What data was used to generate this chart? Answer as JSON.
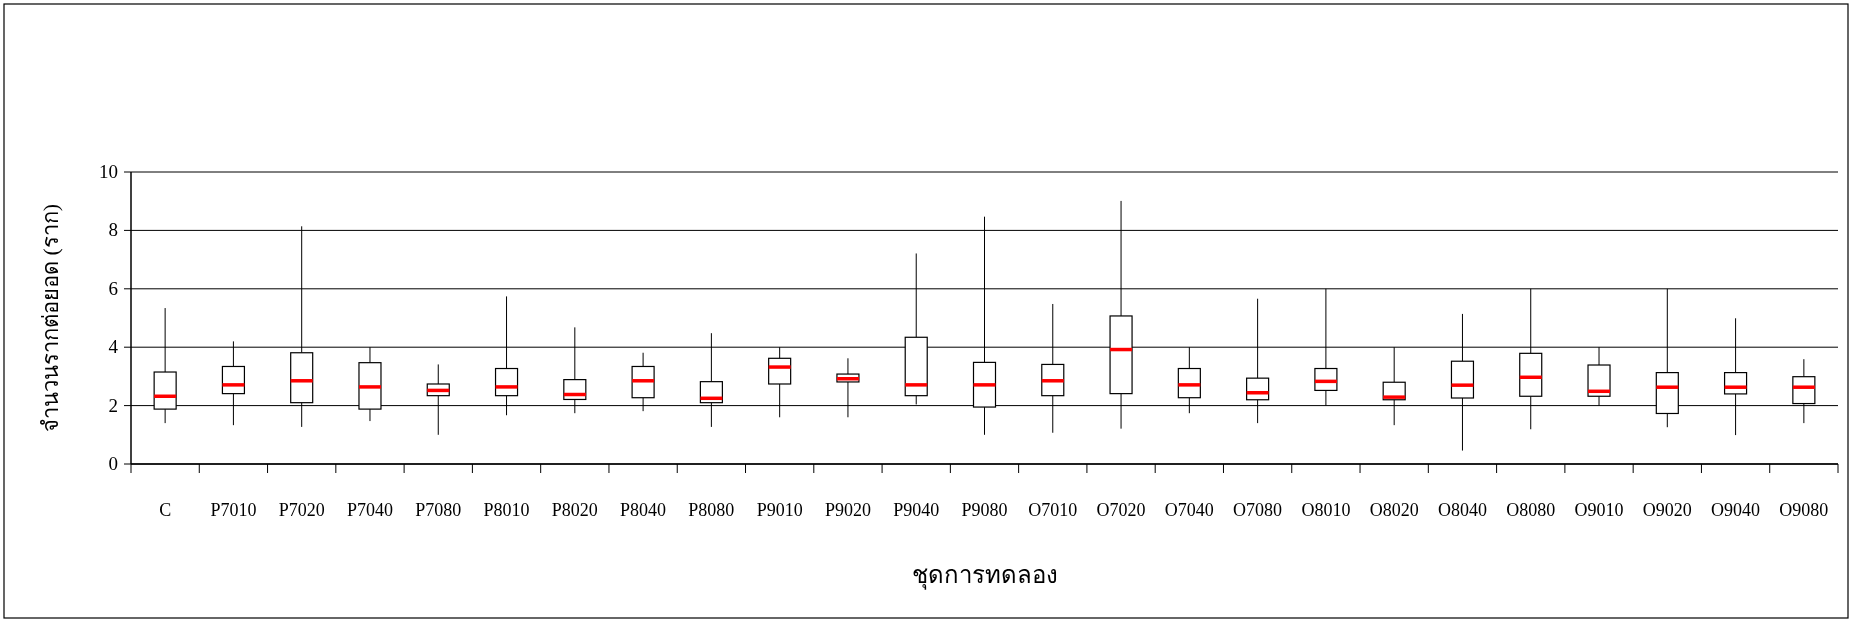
{
  "chart_data": {
    "type": "box",
    "xlabel": "ชุดการทดลอง",
    "ylabel": "จำนวนรากต่อยอด (ราก)",
    "categories": [
      "C",
      "P7010",
      "P7020",
      "P7040",
      "P7080",
      "P8010",
      "P8020",
      "P8040",
      "P8080",
      "P9010",
      "P9020",
      "P9040",
      "P9080",
      "O7010",
      "O7020",
      "O7040",
      "O7080",
      "O8010",
      "O8020",
      "O8040",
      "O8080",
      "O9010",
      "O9020",
      "O9040",
      "O9080"
    ],
    "boxes": [
      {
        "low": 1.4,
        "q1": 1.88,
        "median": 2.32,
        "q3": 3.15,
        "high": 5.34
      },
      {
        "low": 1.33,
        "q1": 2.41,
        "median": 2.71,
        "q3": 3.34,
        "high": 4.2
      },
      {
        "low": 1.27,
        "q1": 2.1,
        "median": 2.85,
        "q3": 3.81,
        "high": 8.14
      },
      {
        "low": 1.47,
        "q1": 1.88,
        "median": 2.64,
        "q3": 3.47,
        "high": 4.0
      },
      {
        "low": 1.0,
        "q1": 2.34,
        "median": 2.52,
        "q3": 2.74,
        "high": 3.41
      },
      {
        "low": 1.67,
        "q1": 2.34,
        "median": 2.64,
        "q3": 3.27,
        "high": 5.74
      },
      {
        "low": 1.74,
        "q1": 2.21,
        "median": 2.38,
        "q3": 2.89,
        "high": 4.68
      },
      {
        "low": 1.81,
        "q1": 2.27,
        "median": 2.85,
        "q3": 3.34,
        "high": 3.81
      },
      {
        "low": 1.27,
        "q1": 2.1,
        "median": 2.25,
        "q3": 2.82,
        "high": 4.48
      },
      {
        "low": 1.6,
        "q1": 2.74,
        "median": 3.32,
        "q3": 3.62,
        "high": 4.0
      },
      {
        "low": 1.6,
        "q1": 2.81,
        "median": 2.92,
        "q3": 3.08,
        "high": 3.62
      },
      {
        "low": 2.04,
        "q1": 2.34,
        "median": 2.71,
        "q3": 4.34,
        "high": 7.21
      },
      {
        "low": 1.0,
        "q1": 1.95,
        "median": 2.71,
        "q3": 3.48,
        "high": 8.47
      },
      {
        "low": 1.07,
        "q1": 2.34,
        "median": 2.85,
        "q3": 3.41,
        "high": 5.48
      },
      {
        "low": 1.21,
        "q1": 2.41,
        "median": 3.92,
        "q3": 5.07,
        "high": 9.01
      },
      {
        "low": 1.74,
        "q1": 2.27,
        "median": 2.71,
        "q3": 3.27,
        "high": 4.0
      },
      {
        "low": 1.4,
        "q1": 2.2,
        "median": 2.44,
        "q3": 2.94,
        "high": 5.66
      },
      {
        "low": 2.0,
        "q1": 2.52,
        "median": 2.83,
        "q3": 3.27,
        "high": 6.0
      },
      {
        "low": 1.33,
        "q1": 2.2,
        "median": 2.29,
        "q3": 2.8,
        "high": 4.0
      },
      {
        "low": 0.46,
        "q1": 2.26,
        "median": 2.7,
        "q3": 3.52,
        "high": 5.14
      },
      {
        "low": 1.19,
        "q1": 2.32,
        "median": 2.97,
        "q3": 3.79,
        "high": 6.0
      },
      {
        "low": 2.0,
        "q1": 2.32,
        "median": 2.49,
        "q3": 3.39,
        "high": 4.0
      },
      {
        "low": 1.26,
        "q1": 1.73,
        "median": 2.63,
        "q3": 3.13,
        "high": 6.0
      },
      {
        "low": 0.99,
        "q1": 2.4,
        "median": 2.63,
        "q3": 3.13,
        "high": 4.99
      },
      {
        "low": 1.4,
        "q1": 2.07,
        "median": 2.63,
        "q3": 2.99,
        "high": 3.59
      }
    ],
    "ylim": [
      0,
      10
    ],
    "yticks": [
      0,
      2,
      4,
      6,
      8,
      10
    ],
    "grid": "y"
  }
}
